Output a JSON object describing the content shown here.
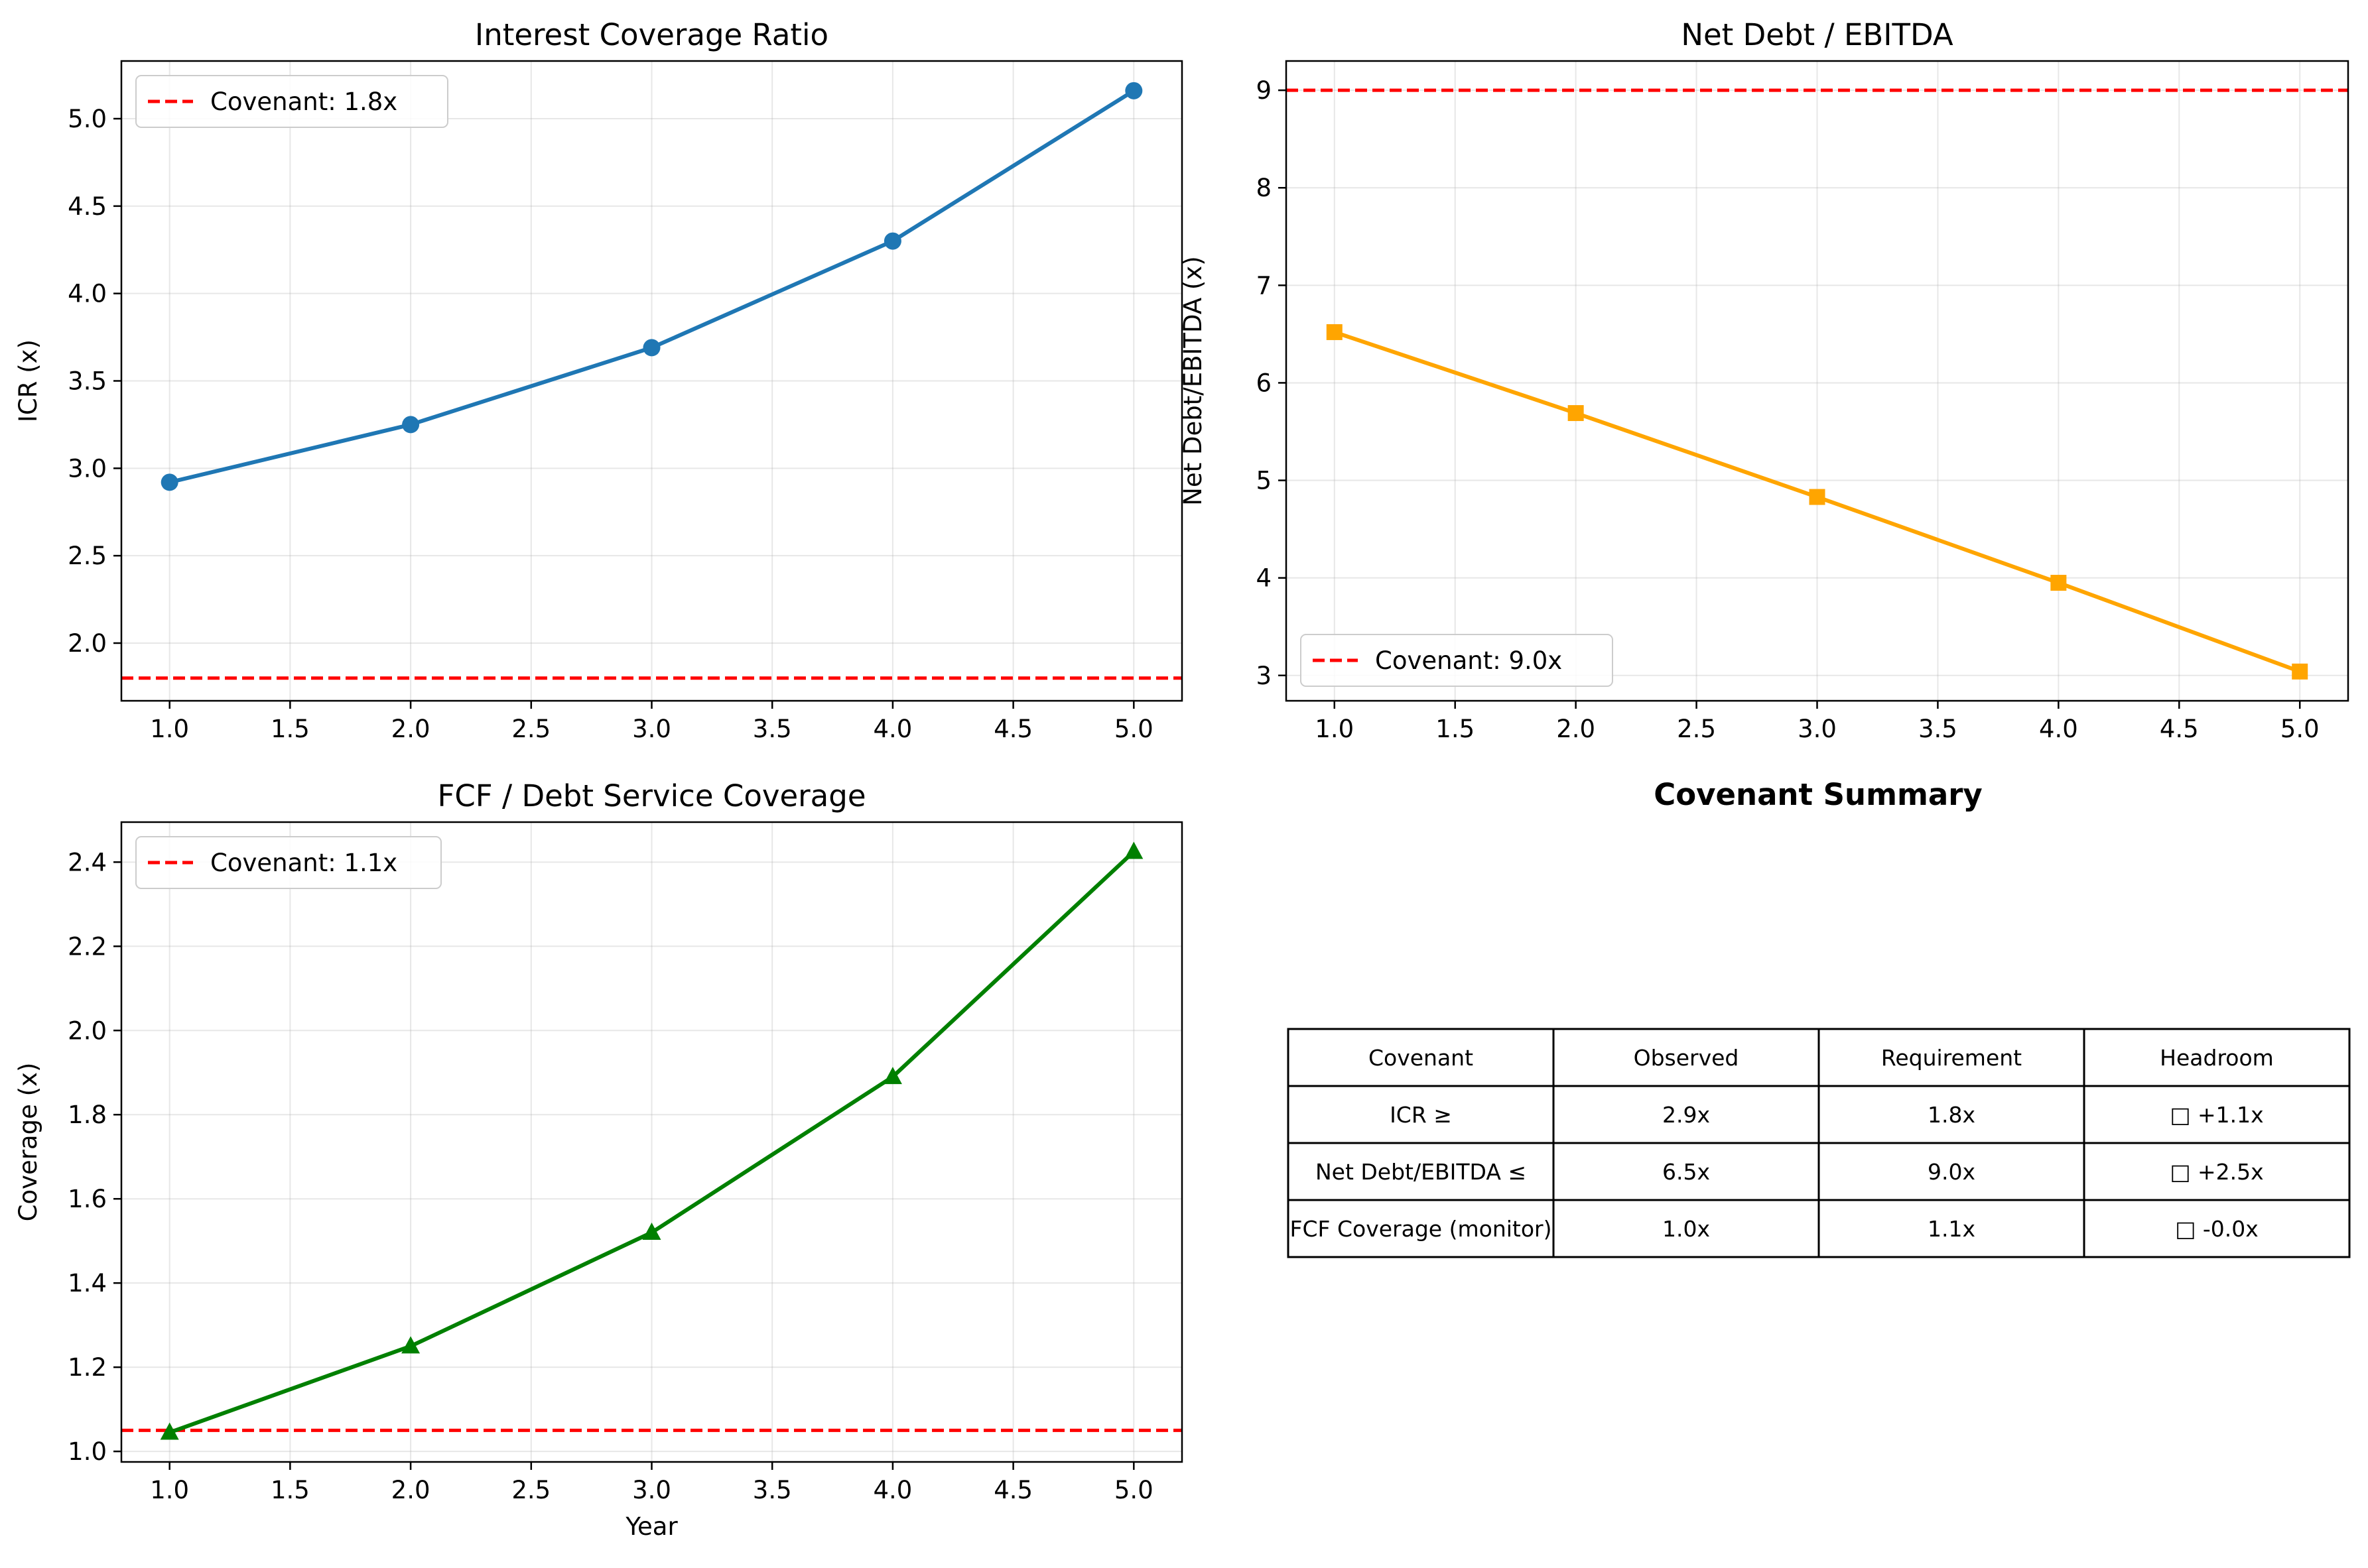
{
  "chart_data": [
    {
      "type": "line",
      "title": "Interest Coverage Ratio",
      "xlabel": "",
      "ylabel": "ICR (x)",
      "x": [
        1,
        2,
        3,
        4,
        5
      ],
      "series": [
        {
          "values": [
            2.92,
            3.25,
            3.69,
            4.3,
            5.16
          ],
          "color": "#1f77b4",
          "marker": "circle"
        }
      ],
      "threshold": {
        "name": "Covenant: 1.8x",
        "value": 1.8,
        "color": "#ff0000",
        "style": "dashed"
      },
      "xlim": [
        0.8,
        5.2
      ],
      "ylim": [
        1.67,
        5.33
      ],
      "x_ticks": [
        1.0,
        1.5,
        2.0,
        2.5,
        3.0,
        3.5,
        4.0,
        4.5,
        5.0
      ],
      "x_tick_labels": [
        "1.0",
        "1.5",
        "2.0",
        "2.5",
        "3.0",
        "3.5",
        "4.0",
        "4.5",
        "5.0"
      ],
      "y_ticks": [
        2.0,
        2.5,
        3.0,
        3.5,
        4.0,
        4.5,
        5.0
      ],
      "y_tick_labels": [
        "2.0",
        "2.5",
        "3.0",
        "3.5",
        "4.0",
        "4.5",
        "5.0"
      ],
      "grid": true,
      "legend_position": "upper-left"
    },
    {
      "type": "line",
      "title": "Net Debt / EBITDA",
      "xlabel": "",
      "ylabel": "Net Debt/EBITDA (x)",
      "x": [
        1,
        2,
        3,
        4,
        5
      ],
      "series": [
        {
          "values": [
            6.52,
            5.69,
            4.83,
            3.95,
            3.04
          ],
          "color": "#ffa500",
          "marker": "square"
        }
      ],
      "threshold": {
        "name": "Covenant: 9.0x",
        "value": 9.0,
        "color": "#ff0000",
        "style": "dashed"
      },
      "xlim": [
        0.8,
        5.2
      ],
      "ylim": [
        2.74,
        9.3
      ],
      "x_ticks": [
        1.0,
        1.5,
        2.0,
        2.5,
        3.0,
        3.5,
        4.0,
        4.5,
        5.0
      ],
      "x_tick_labels": [
        "1.0",
        "1.5",
        "2.0",
        "2.5",
        "3.0",
        "3.5",
        "4.0",
        "4.5",
        "5.0"
      ],
      "y_ticks": [
        3,
        4,
        5,
        6,
        7,
        8,
        9
      ],
      "y_tick_labels": [
        "3",
        "4",
        "5",
        "6",
        "7",
        "8",
        "9"
      ],
      "grid": true,
      "legend_position": "lower-left"
    },
    {
      "type": "line",
      "title": "FCF / Debt Service Coverage",
      "xlabel": "Year",
      "ylabel": "Coverage (x)",
      "x": [
        1,
        2,
        3,
        4,
        5
      ],
      "series": [
        {
          "values": [
            1.045,
            1.25,
            1.52,
            1.89,
            2.425
          ],
          "color": "#008000",
          "marker": "triangle"
        }
      ],
      "threshold": {
        "name": "Covenant: 1.1x",
        "value": 1.05,
        "color": "#ff0000",
        "style": "dashed"
      },
      "xlim": [
        0.8,
        5.2
      ],
      "ylim": [
        0.975,
        2.495
      ],
      "x_ticks": [
        1.0,
        1.5,
        2.0,
        2.5,
        3.0,
        3.5,
        4.0,
        4.5,
        5.0
      ],
      "x_tick_labels": [
        "1.0",
        "1.5",
        "2.0",
        "2.5",
        "3.0",
        "3.5",
        "4.0",
        "4.5",
        "5.0"
      ],
      "y_ticks": [
        1.0,
        1.2,
        1.4,
        1.6,
        1.8,
        2.0,
        2.2,
        2.4
      ],
      "y_tick_labels": [
        "1.0",
        "1.2",
        "1.4",
        "1.6",
        "1.8",
        "2.0",
        "2.2",
        "2.4"
      ],
      "grid": true,
      "legend_position": "upper-left"
    },
    {
      "type": "table",
      "title": "Covenant Summary",
      "columns": [
        "Covenant",
        "Observed",
        "Requirement",
        "Headroom"
      ],
      "rows": [
        [
          "ICR ≥",
          "2.9x",
          "1.8x",
          "□ +1.1x"
        ],
        [
          "Net Debt/EBITDA ≤",
          "6.5x",
          "9.0x",
          "□ +2.5x"
        ],
        [
          "FCF Coverage (monitor)",
          "1.0x",
          "1.1x",
          "□ -0.0x"
        ]
      ]
    }
  ]
}
